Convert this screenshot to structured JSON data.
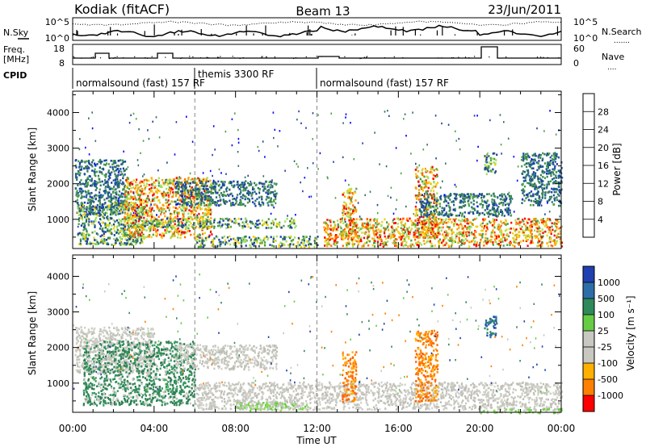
{
  "header": {
    "station": "Kodiak (fitACF)",
    "beam": "Beam 13",
    "date": "23/Jun/2011"
  },
  "summary": {
    "left_top_label": "N.Sky",
    "left_top_ticks": [
      "10^5",
      "10^0"
    ],
    "right_top_label": "N.Search",
    "right_top_ticks": [
      "10^5",
      "10^0"
    ],
    "freq_label_1": "Freq.",
    "freq_label_2": "[MHz]",
    "freq_ticks": [
      "18",
      "8"
    ],
    "nave_label": "Nave",
    "nave_ticks": [
      "60",
      "0"
    ],
    "cpid_label": "CPID",
    "cpid_segments": [
      "normalsound (fast) 157 RF",
      "themis 3300 RF",
      "normalsound (fast) 157 RF"
    ]
  },
  "chart_data": [
    {
      "type": "heatmap",
      "title": "",
      "xlabel": "Time UT",
      "ylabel": "Slant Range [km]",
      "x_ticks": [
        "00:00",
        "04:00",
        "08:00",
        "12:00",
        "16:00",
        "20:00",
        "00:00"
      ],
      "xlim_hours": [
        0,
        24
      ],
      "ylim_km": [
        180,
        4600
      ],
      "y_ticks": [
        1000,
        2000,
        3000,
        4000
      ],
      "colorbar": {
        "label": "Power [dB]",
        "ticks": [
          "4",
          "8",
          "12",
          "16",
          "20",
          "24",
          "28"
        ],
        "colors": [
          "#0000ff",
          "#1e3ca8",
          "#2c6e68",
          "#4da046",
          "#9ee060",
          "#f0d010",
          "#ffa000",
          "#ff6a00",
          "#ff0000"
        ]
      },
      "cpid_change_times_hours": [
        6.0,
        12.0
      ],
      "echo_regions": [
        {
          "t0": 0.1,
          "t1": 2.6,
          "r0": 1150,
          "r1": 2700,
          "level": "low"
        },
        {
          "t0": 0.2,
          "t1": 3.5,
          "r0": 300,
          "r1": 1500,
          "level": "medium"
        },
        {
          "t0": 2.5,
          "t1": 6.8,
          "r0": 500,
          "r1": 2200,
          "level": "high"
        },
        {
          "t0": 5.0,
          "t1": 10.0,
          "r0": 1400,
          "r1": 2100,
          "level": "low"
        },
        {
          "t0": 3.0,
          "t1": 11.0,
          "r0": 780,
          "r1": 1050,
          "level": "medium"
        },
        {
          "t0": 6.0,
          "t1": 12.0,
          "r0": 250,
          "r1": 550,
          "level": "medium"
        },
        {
          "t0": 12.3,
          "t1": 24.0,
          "r0": 260,
          "r1": 1050,
          "level": "high"
        },
        {
          "t0": 13.2,
          "t1": 13.9,
          "r0": 500,
          "r1": 1900,
          "level": "high"
        },
        {
          "t0": 16.8,
          "t1": 17.9,
          "r0": 500,
          "r1": 2500,
          "level": "high"
        },
        {
          "t0": 17.0,
          "t1": 21.5,
          "r0": 1100,
          "r1": 1750,
          "level": "low"
        },
        {
          "t0": 20.2,
          "t1": 20.8,
          "r0": 2300,
          "r1": 2900,
          "level": "medium"
        },
        {
          "t0": 22.0,
          "t1": 24.0,
          "r0": 1400,
          "r1": 2900,
          "level": "low"
        }
      ]
    },
    {
      "type": "heatmap",
      "title": "",
      "xlabel": "Time UT",
      "ylabel": "Slant Range [km]",
      "x_ticks": [
        "00:00",
        "04:00",
        "08:00",
        "12:00",
        "16:00",
        "20:00",
        "00:00"
      ],
      "xlim_hours": [
        0,
        24
      ],
      "ylim_km": [
        180,
        4600
      ],
      "y_ticks": [
        1000,
        2000,
        3000,
        4000
      ],
      "colorbar": {
        "label": "Velocity [m s⁻¹]",
        "ticks": [
          "1000",
          "500",
          "100",
          "25",
          "-25",
          "-100",
          "-500",
          "-1000"
        ],
        "colors": [
          "#2040b0",
          "#2e6ea8",
          "#2e8a5a",
          "#66cc44",
          "#c8c8c0",
          "#c8c8c0",
          "#ffb000",
          "#ff8000",
          "#ff0000"
        ]
      },
      "cpid_change_times_hours": [
        6.0,
        12.0
      ],
      "echo_regions": [
        {
          "t0": 0.1,
          "t1": 4.0,
          "r0": 1300,
          "r1": 2600,
          "level": "gray"
        },
        {
          "t0": 0.5,
          "t1": 6.0,
          "r0": 400,
          "r1": 2200,
          "level": "green"
        },
        {
          "t0": 5.0,
          "t1": 10.0,
          "r0": 1400,
          "r1": 2100,
          "level": "gray"
        },
        {
          "t0": 6.0,
          "t1": 24.0,
          "r0": 280,
          "r1": 1050,
          "level": "gray"
        },
        {
          "t0": 8.0,
          "t1": 11.5,
          "r0": 250,
          "r1": 500,
          "level": "lightgreen"
        },
        {
          "t0": 13.2,
          "t1": 13.9,
          "r0": 500,
          "r1": 1900,
          "level": "orange"
        },
        {
          "t0": 16.8,
          "t1": 17.9,
          "r0": 500,
          "r1": 2500,
          "level": "orange"
        },
        {
          "t0": 20.2,
          "t1": 20.8,
          "r0": 2300,
          "r1": 2900,
          "level": "blue"
        },
        {
          "t0": 20.0,
          "t1": 24.0,
          "r0": 180,
          "r1": 300,
          "level": "lightgreen"
        }
      ]
    }
  ]
}
